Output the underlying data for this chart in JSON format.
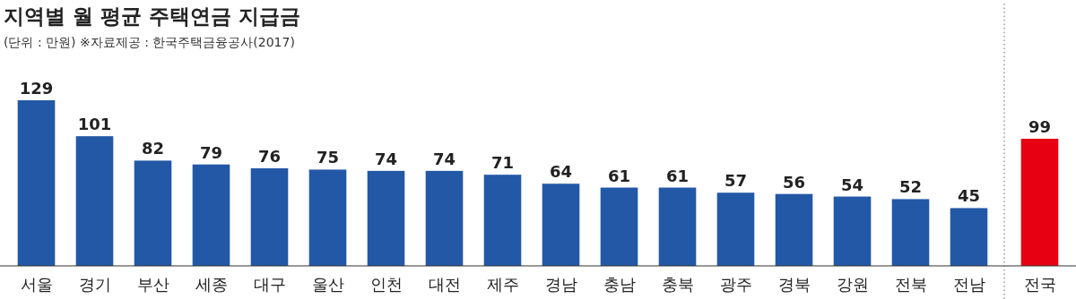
{
  "chart_data": {
    "type": "bar",
    "title": "지역별 월 평균 주택연금 지급금",
    "subtitle": "(단위 : 만원) ※자료제공 : 한국주택금융공사(2017)",
    "categories": [
      "서울",
      "경기",
      "부산",
      "세종",
      "대구",
      "울산",
      "인천",
      "대전",
      "제주",
      "경남",
      "충남",
      "충북",
      "광주",
      "경북",
      "강원",
      "전북",
      "전남",
      "전국"
    ],
    "values": [
      129,
      101,
      82,
      79,
      76,
      75,
      74,
      74,
      71,
      64,
      61,
      61,
      57,
      56,
      54,
      52,
      45,
      99
    ],
    "colors": [
      "#2358a6",
      "#2358a6",
      "#2358a6",
      "#2358a6",
      "#2358a6",
      "#2358a6",
      "#2358a6",
      "#2358a6",
      "#2358a6",
      "#2358a6",
      "#2358a6",
      "#2358a6",
      "#2358a6",
      "#2358a6",
      "#2358a6",
      "#2358a6",
      "#2358a6",
      "#e60012"
    ],
    "data_labels": true
  }
}
